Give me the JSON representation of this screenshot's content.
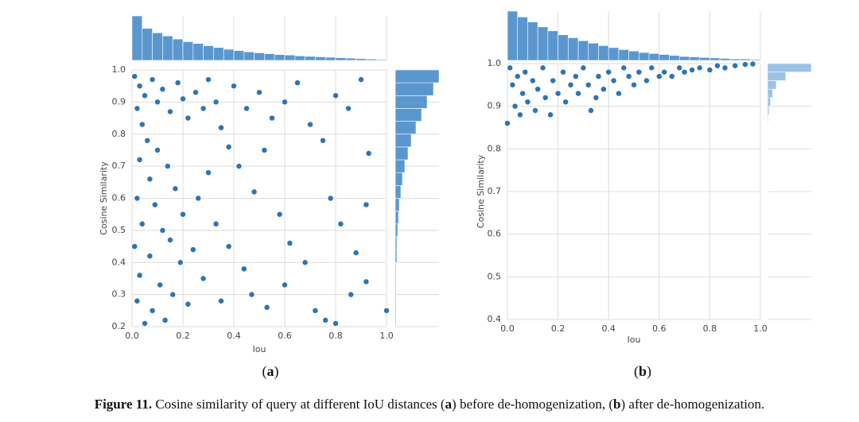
{
  "chart_data": [
    {
      "type": "scatter",
      "subcaption": [
        {
          "text": "(",
          "bold": false
        },
        {
          "text": "a",
          "bold": true
        },
        {
          "text": ")",
          "bold": false
        }
      ],
      "xlabel": "Iou",
      "ylabel": "Cosine Similarity",
      "color": "#2f74b0",
      "hist_color": "#5b97cf",
      "grid": true,
      "xlim": [
        0,
        1
      ],
      "ylim": [
        0.2,
        1
      ],
      "xticks": [
        {
          "value": 0,
          "label": "0.0"
        },
        0.2,
        0.4,
        0.6,
        0.8,
        {
          "value": 1,
          "label": "1.0"
        }
      ],
      "yticks": [
        0.2,
        0.3,
        0.4,
        0.5,
        0.6,
        0.7,
        0.8,
        0.9,
        {
          "value": 1,
          "label": "1.0"
        }
      ],
      "x": [
        0.01,
        0.03,
        0.05,
        0.02,
        0.08,
        0.1,
        0.04,
        0.12,
        0.15,
        0.06,
        0.18,
        0.2,
        0.03,
        0.1,
        0.22,
        0.25,
        0.07,
        0.14,
        0.3,
        0.28,
        0.02,
        0.09,
        0.17,
        0.33,
        0.35,
        0.04,
        0.12,
        0.2,
        0.4,
        0.38,
        0.01,
        0.07,
        0.15,
        0.26,
        0.45,
        0.03,
        0.11,
        0.19,
        0.3,
        0.5,
        0.02,
        0.08,
        0.16,
        0.24,
        0.42,
        0.55,
        0.05,
        0.13,
        0.22,
        0.33,
        0.48,
        0.6,
        0.28,
        0.38,
        0.52,
        0.65,
        0.44,
        0.58,
        0.7,
        0.35,
        0.47,
        0.62,
        0.75,
        0.8,
        0.53,
        0.68,
        0.78,
        0.85,
        0.6,
        0.72,
        0.82,
        0.9,
        0.76,
        0.86,
        0.93,
        0.8,
        0.92,
        0.92,
        0.88,
        1.0
      ],
      "y": [
        0.98,
        0.95,
        0.92,
        0.88,
        0.97,
        0.9,
        0.83,
        0.94,
        0.87,
        0.78,
        0.96,
        0.91,
        0.72,
        0.75,
        0.85,
        0.93,
        0.66,
        0.7,
        0.97,
        0.88,
        0.6,
        0.58,
        0.63,
        0.9,
        0.82,
        0.52,
        0.5,
        0.55,
        0.95,
        0.76,
        0.45,
        0.42,
        0.47,
        0.6,
        0.88,
        0.36,
        0.33,
        0.4,
        0.68,
        0.93,
        0.28,
        0.25,
        0.3,
        0.44,
        0.7,
        0.85,
        0.21,
        0.22,
        0.27,
        0.52,
        0.62,
        0.9,
        0.35,
        0.45,
        0.75,
        0.96,
        0.38,
        0.55,
        0.83,
        0.28,
        0.3,
        0.46,
        0.78,
        0.92,
        0.26,
        0.4,
        0.6,
        0.88,
        0.33,
        0.25,
        0.52,
        0.97,
        0.22,
        0.3,
        0.74,
        0.21,
        0.34,
        0.58,
        0.43,
        0.25
      ],
      "top_hist": {
        "bins": [
          0,
          0.04,
          0.08,
          0.12,
          0.16,
          0.2,
          0.24,
          0.28,
          0.32,
          0.36,
          0.4,
          0.44,
          0.48,
          0.52,
          0.56,
          0.6,
          0.64,
          0.68,
          0.72,
          0.76,
          0.8,
          0.84,
          0.88,
          0.92,
          0.96,
          1.0
        ],
        "counts": [
          100,
          72,
          62,
          55,
          48,
          42,
          38,
          33,
          29,
          25,
          22,
          19,
          17,
          15,
          13,
          12,
          10,
          9,
          8,
          7,
          6,
          5,
          4,
          3,
          2
        ]
      },
      "right_hist": {
        "bins": [
          0.2,
          0.24,
          0.28,
          0.32,
          0.36,
          0.4,
          0.44,
          0.48,
          0.52,
          0.56,
          0.6,
          0.64,
          0.68,
          0.72,
          0.76,
          0.8,
          0.84,
          0.88,
          0.92,
          0.96,
          1.0
        ],
        "counts": [
          1,
          1,
          1,
          1,
          1,
          2,
          2,
          3,
          4,
          5,
          7,
          9,
          12,
          16,
          20,
          26,
          33,
          40,
          48,
          55
        ]
      }
    },
    {
      "type": "scatter",
      "subcaption": [
        {
          "text": "(",
          "bold": false
        },
        {
          "text": "b",
          "bold": true
        },
        {
          "text": ")",
          "bold": false
        }
      ],
      "xlabel": "Iou",
      "ylabel": "Cosine Similarity",
      "color": "#2f74b0",
      "hist_color": "#5b97cf",
      "right_hist_color": "#9cc2e5",
      "grid": true,
      "xlim": [
        0,
        1
      ],
      "ylim": [
        0.4,
        1
      ],
      "xticks": [
        {
          "value": 0,
          "label": "0.0"
        },
        0.2,
        0.4,
        0.6,
        0.8,
        {
          "value": 1,
          "label": "1.0"
        }
      ],
      "yticks": [
        0.4,
        0.5,
        0.6,
        0.7,
        0.8,
        0.9,
        {
          "value": 1,
          "label": "1.0"
        }
      ],
      "x": [
        0.0,
        0.01,
        0.02,
        0.03,
        0.04,
        0.05,
        0.06,
        0.07,
        0.08,
        0.1,
        0.11,
        0.12,
        0.14,
        0.15,
        0.17,
        0.18,
        0.2,
        0.22,
        0.23,
        0.25,
        0.27,
        0.28,
        0.3,
        0.32,
        0.33,
        0.35,
        0.36,
        0.38,
        0.4,
        0.42,
        0.44,
        0.46,
        0.48,
        0.5,
        0.52,
        0.55,
        0.57,
        0.6,
        0.62,
        0.65,
        0.68,
        0.7,
        0.73,
        0.76,
        0.8,
        0.83,
        0.86,
        0.9,
        0.94,
        0.97
      ],
      "y": [
        0.86,
        0.99,
        0.95,
        0.9,
        0.97,
        0.88,
        0.93,
        0.98,
        0.91,
        0.96,
        0.89,
        0.94,
        0.99,
        0.92,
        0.88,
        0.96,
        0.93,
        0.98,
        0.91,
        0.95,
        0.97,
        0.93,
        0.99,
        0.95,
        0.89,
        0.92,
        0.97,
        0.94,
        0.98,
        0.96,
        0.93,
        0.99,
        0.97,
        0.95,
        0.98,
        0.96,
        0.99,
        0.97,
        0.98,
        0.97,
        0.99,
        0.98,
        0.985,
        0.99,
        0.985,
        0.995,
        0.99,
        0.995,
        0.998,
        0.999
      ],
      "top_hist": {
        "bins": [
          0,
          0.04,
          0.08,
          0.12,
          0.16,
          0.2,
          0.24,
          0.28,
          0.32,
          0.36,
          0.4,
          0.44,
          0.48,
          0.52,
          0.56,
          0.6,
          0.64,
          0.68,
          0.72,
          0.76,
          0.8,
          0.84,
          0.88,
          0.92,
          0.96,
          1.0
        ],
        "counts": [
          100,
          88,
          78,
          68,
          60,
          52,
          46,
          40,
          35,
          30,
          26,
          22,
          19,
          16,
          14,
          12,
          10,
          8,
          7,
          6,
          5,
          4,
          3,
          3,
          2
        ]
      },
      "right_hist": {
        "bins": [
          0.4,
          0.42,
          0.44,
          0.46,
          0.48,
          0.5,
          0.52,
          0.54,
          0.56,
          0.58,
          0.6,
          0.62,
          0.64,
          0.66,
          0.68,
          0.7,
          0.72,
          0.74,
          0.76,
          0.78,
          0.8,
          0.82,
          0.84,
          0.86,
          0.88,
          0.9,
          0.92,
          0.94,
          0.96,
          0.98,
          1.0
        ],
        "counts": [
          0,
          0,
          0,
          0,
          0,
          0,
          0,
          0,
          0,
          0,
          0,
          0,
          0,
          0,
          0,
          0,
          0,
          0,
          0,
          0,
          0,
          0,
          0,
          1,
          2,
          4,
          7,
          12,
          25,
          60
        ]
      }
    }
  ],
  "caption": [
    {
      "text": "Figure 11.",
      "bold": true
    },
    {
      "text": " Cosine similarity of query at different IoU distances (",
      "bold": false
    },
    {
      "text": "a",
      "bold": true
    },
    {
      "text": ") before de-homogenization, (",
      "bold": false
    },
    {
      "text": "b",
      "bold": true
    },
    {
      "text": ") after de-homogenization.",
      "bold": false
    }
  ]
}
